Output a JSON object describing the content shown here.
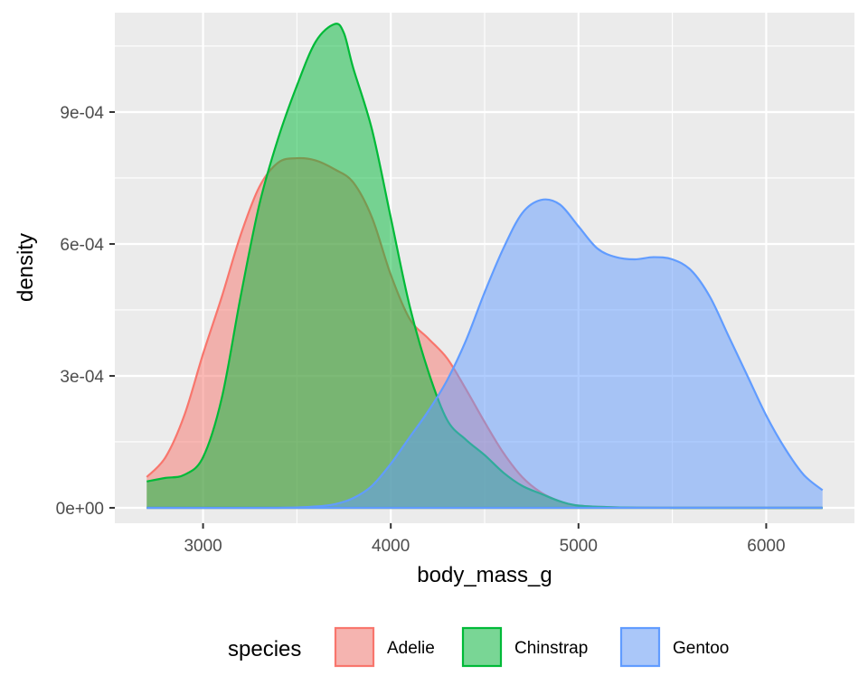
{
  "chart_data": {
    "type": "area",
    "subtype": "density",
    "title": "",
    "xlabel": "body_mass_g",
    "ylabel": "density",
    "xlim": [
      2530,
      6470
    ],
    "ylim": [
      -3.5e-05,
      0.001126
    ],
    "x_ticks": [
      3000,
      4000,
      5000,
      6000
    ],
    "x_tick_labels": [
      "3000",
      "4000",
      "5000",
      "6000"
    ],
    "y_ticks": [
      0,
      0.0003,
      0.0006,
      0.0009
    ],
    "y_tick_labels": [
      "0e+00",
      "3e-04",
      "6e-04",
      "9e-04"
    ],
    "grid": true,
    "fill_opacity": 0.5,
    "legend": {
      "title": "species",
      "position": "bottom"
    },
    "series": [
      {
        "name": "Adelie",
        "color": "#F8766D",
        "points": [
          [
            2700,
            7e-05
          ],
          [
            2800,
            0.000115
          ],
          [
            2900,
            0.00021
          ],
          [
            3000,
            0.00035
          ],
          [
            3100,
            0.00048
          ],
          [
            3200,
            0.00062
          ],
          [
            3300,
            0.00073
          ],
          [
            3400,
            0.000785
          ],
          [
            3500,
            0.000795
          ],
          [
            3600,
            0.00079
          ],
          [
            3700,
            0.00077
          ],
          [
            3800,
            0.00074
          ],
          [
            3900,
            0.00066
          ],
          [
            4000,
            0.00053
          ],
          [
            4100,
            0.00043
          ],
          [
            4200,
            0.000385
          ],
          [
            4300,
            0.00034
          ],
          [
            4400,
            0.00027
          ],
          [
            4500,
            0.000195
          ],
          [
            4600,
            0.000125
          ],
          [
            4700,
            7e-05
          ],
          [
            4800,
            3.5e-05
          ],
          [
            4900,
            1.5e-05
          ],
          [
            5000,
            5e-06
          ],
          [
            5200,
            1e-06
          ],
          [
            5500,
            0
          ],
          [
            6300,
            0
          ]
        ]
      },
      {
        "name": "Chinstrap",
        "color": "#00BA38",
        "points": [
          [
            2700,
            6e-05
          ],
          [
            2800,
            6.8e-05
          ],
          [
            2900,
            7.5e-05
          ],
          [
            3000,
            0.000115
          ],
          [
            3100,
            0.00025
          ],
          [
            3200,
            0.00048
          ],
          [
            3300,
            0.00069
          ],
          [
            3400,
            0.00084
          ],
          [
            3500,
            0.00096
          ],
          [
            3600,
            0.00106
          ],
          [
            3700,
            0.0011
          ],
          [
            3750,
            0.00108
          ],
          [
            3800,
            0.001
          ],
          [
            3900,
            0.00086
          ],
          [
            4000,
            0.00066
          ],
          [
            4100,
            0.00046
          ],
          [
            4200,
            0.00031
          ],
          [
            4300,
            0.0002
          ],
          [
            4400,
            0.000155
          ],
          [
            4500,
            0.00012
          ],
          [
            4600,
            8e-05
          ],
          [
            4700,
            5e-05
          ],
          [
            4800,
            3.2e-05
          ],
          [
            4900,
            1.5e-05
          ],
          [
            5000,
            5e-06
          ],
          [
            5200,
            1e-06
          ],
          [
            5500,
            0
          ],
          [
            6300,
            0
          ]
        ]
      },
      {
        "name": "Gentoo",
        "color": "#619CFF",
        "points": [
          [
            2700,
            0
          ],
          [
            3400,
            0
          ],
          [
            3600,
            3e-06
          ],
          [
            3700,
            8e-06
          ],
          [
            3800,
            2.2e-05
          ],
          [
            3900,
            5e-05
          ],
          [
            4000,
            0.0001
          ],
          [
            4100,
            0.00016
          ],
          [
            4200,
            0.00022
          ],
          [
            4300,
            0.00029
          ],
          [
            4400,
            0.00038
          ],
          [
            4500,
            0.00049
          ],
          [
            4600,
            0.00059
          ],
          [
            4700,
            0.00067
          ],
          [
            4800,
            0.0007
          ],
          [
            4900,
            0.00069
          ],
          [
            5000,
            0.00064
          ],
          [
            5100,
            0.00059
          ],
          [
            5200,
            0.00057
          ],
          [
            5300,
            0.000565
          ],
          [
            5400,
            0.00057
          ],
          [
            5500,
            0.000565
          ],
          [
            5600,
            0.00054
          ],
          [
            5700,
            0.00048
          ],
          [
            5800,
            0.00039
          ],
          [
            5900,
            0.0003
          ],
          [
            6000,
            0.00021
          ],
          [
            6100,
            0.000135
          ],
          [
            6200,
            7.5e-05
          ],
          [
            6300,
            4e-05
          ]
        ]
      }
    ]
  }
}
